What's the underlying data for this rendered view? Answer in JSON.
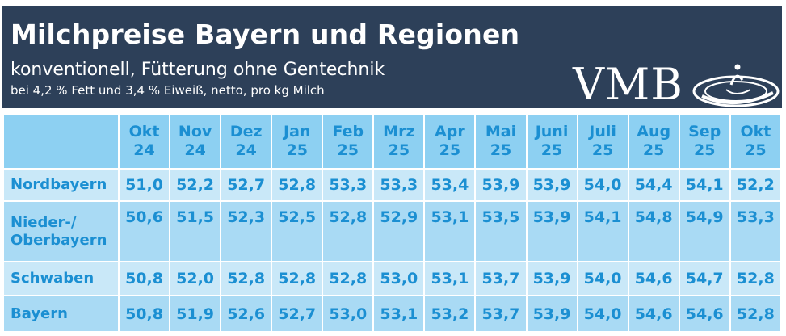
{
  "header": {
    "title": "Milchpreise Bayern und Regionen",
    "subtitle": "konventionell, Fütterung ohne Gentechnik",
    "subtitle2": "bei 4,2 % Fett und 3,4 % Eiweiß, netto, pro kg Milch",
    "logo_text": "VMB",
    "colors": {
      "header_bg": "#2d4059",
      "text": "#ffffff"
    }
  },
  "chart_data": {
    "type": "table",
    "columns": [
      [
        "Okt",
        "24"
      ],
      [
        "Nov",
        "24"
      ],
      [
        "Dez",
        "24"
      ],
      [
        "Jan",
        "25"
      ],
      [
        "Feb",
        "25"
      ],
      [
        "Mrz",
        "25"
      ],
      [
        "Apr",
        "25"
      ],
      [
        "Mai",
        "25"
      ],
      [
        "Juni",
        "25"
      ],
      [
        "Juli",
        "25"
      ],
      [
        "Aug",
        "25"
      ],
      [
        "Sep",
        "25"
      ],
      [
        "Okt",
        "25"
      ]
    ],
    "rows": [
      {
        "region": "Nordbayern",
        "values": [
          "51,0",
          "52,2",
          "52,7",
          "52,8",
          "53,3",
          "53,3",
          "53,4",
          "53,9",
          "53,9",
          "54,0",
          "54,4",
          "54,1",
          "52,2"
        ]
      },
      {
        "region": "Nieder-/ Oberbayern",
        "values": [
          "50,6",
          "51,5",
          "52,3",
          "52,5",
          "52,8",
          "52,9",
          "53,1",
          "53,5",
          "53,9",
          "54,1",
          "54,8",
          "54,9",
          "53,3"
        ]
      },
      {
        "region": "Schwaben",
        "values": [
          "50,8",
          "52,0",
          "52,8",
          "52,8",
          "52,8",
          "53,0",
          "53,1",
          "53,7",
          "53,9",
          "54,0",
          "54,6",
          "54,7",
          "52,8"
        ]
      },
      {
        "region": "Bayern",
        "values": [
          "50,8",
          "51,9",
          "52,6",
          "52,7",
          "53,0",
          "53,1",
          "53,2",
          "53,7",
          "53,9",
          "54,0",
          "54,6",
          "54,6",
          "52,8"
        ]
      }
    ],
    "colors": {
      "header_cell": "#8dd0f2",
      "row_light": "#c9e8f8",
      "row_dark": "#a9daf4",
      "text": "#1b8fd2"
    }
  }
}
